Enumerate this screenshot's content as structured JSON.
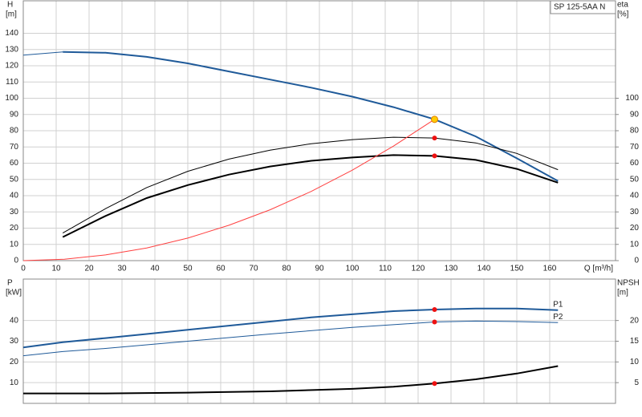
{
  "chart_data": [
    {
      "type": "line",
      "title": "SP 125-5AA N",
      "xlabel": "Q [m³/h]",
      "ylabel": "H",
      "yunit": "[m]",
      "y2label": "eta",
      "y2unit": "[%]",
      "xlim": [
        0,
        180
      ],
      "xticks": [
        0,
        10,
        20,
        30,
        40,
        50,
        60,
        70,
        80,
        90,
        100,
        110,
        120,
        130,
        140,
        150,
        160
      ],
      "ylim": [
        0,
        160
      ],
      "yticks": [
        0,
        10,
        20,
        30,
        40,
        50,
        60,
        70,
        80,
        90,
        100,
        110,
        120,
        130,
        140
      ],
      "y2lim": [
        0,
        160
      ],
      "y2ticks": [
        0,
        10,
        20,
        30,
        40,
        50,
        60,
        70,
        80,
        90,
        100
      ],
      "grid": true,
      "series": [
        {
          "color": "#1f5a99",
          "line_width": 1,
          "x": [
            0,
            12
          ],
          "values": [
            126.5,
            128.5
          ]
        },
        {
          "color": "#1f5a99",
          "line_width": 2,
          "x": [
            12,
            25,
            37.5,
            50,
            62.5,
            75,
            87.5,
            100,
            112.5,
            125,
            137.5,
            150,
            162.5
          ],
          "values": [
            128.5,
            128,
            125.5,
            121.5,
            116.5,
            111.5,
            106.5,
            101,
            94.5,
            87,
            76.5,
            63,
            49
          ]
        },
        {
          "color": "#000000",
          "line_width": 1,
          "axis": "y2",
          "x": [
            12,
            25,
            37.5,
            50,
            62.5,
            75,
            87.5,
            100,
            112.5,
            125,
            137.5,
            150,
            162.5
          ],
          "values": [
            17,
            32,
            45,
            55,
            62.5,
            68,
            72,
            74.5,
            76,
            75.5,
            72.5,
            66,
            56
          ]
        },
        {
          "color": "#000000",
          "line_width": 2,
          "axis": "y2",
          "x": [
            12,
            25,
            37.5,
            50,
            62.5,
            75,
            87.5,
            100,
            112.5,
            125,
            137.5,
            150,
            162.5
          ],
          "values": [
            14.5,
            27.5,
            38.5,
            46.5,
            53,
            58,
            61.5,
            63.5,
            65,
            64.5,
            62,
            56.5,
            48
          ]
        },
        {
          "color": "#ff4040",
          "line_width": 1,
          "x": [
            0,
            12.5,
            25,
            37.5,
            50,
            62.5,
            75,
            87.5,
            100,
            112.5,
            125
          ],
          "values": [
            0,
            0.9,
            3.5,
            7.8,
            13.9,
            21.8,
            31.3,
            42.6,
            55.7,
            70.5,
            87
          ]
        }
      ],
      "points": [
        {
          "color": "#ffcc00",
          "x": 125,
          "value": 87
        },
        {
          "color": "#ee1111",
          "axis": "y2",
          "x": 125,
          "value": 75.5
        },
        {
          "color": "#ee1111",
          "axis": "y2",
          "x": 125,
          "value": 64.5
        }
      ]
    },
    {
      "type": "line",
      "ylabel": "P",
      "yunit": "[kW]",
      "y2label": "NPSH",
      "y2unit": "[m]",
      "xlim": [
        0,
        180
      ],
      "ylim": [
        0,
        60
      ],
      "yticks": [
        10,
        20,
        30,
        40
      ],
      "y2lim": [
        0,
        30
      ],
      "y2ticks": [
        5,
        10,
        15,
        20
      ],
      "grid": true,
      "series": [
        {
          "name": "P1",
          "color": "#1f5a99",
          "line_width": 2,
          "x": [
            0,
            12,
            25,
            37.5,
            50,
            62.5,
            75,
            87.5,
            100,
            112.5,
            125,
            137.5,
            150,
            162.5
          ],
          "values": [
            27,
            29.5,
            31.5,
            33.5,
            35.5,
            37.5,
            39.5,
            41.5,
            43,
            44.5,
            45.3,
            45.8,
            45.8,
            45
          ]
        },
        {
          "name": "P2",
          "color": "#1f5a99",
          "line_width": 1,
          "x": [
            0,
            12,
            25,
            50,
            75,
            100,
            125,
            137.5,
            150,
            162.5
          ],
          "values": [
            23,
            25,
            26.5,
            30,
            33.5,
            36.7,
            39.3,
            39.7,
            39.5,
            39
          ]
        },
        {
          "color": "#000000",
          "line_width": 2,
          "axis": "y2",
          "x": [
            0,
            12,
            25,
            50,
            75,
            100,
            112.5,
            125,
            137.5,
            150,
            162.5
          ],
          "values": [
            2.4,
            2.4,
            2.4,
            2.6,
            2.9,
            3.5,
            4.0,
            4.8,
            5.8,
            7.2,
            9
          ]
        }
      ],
      "points": [
        {
          "color": "#ee1111",
          "x": 125,
          "value": 45.3
        },
        {
          "color": "#ee1111",
          "x": 125,
          "value": 39.3
        },
        {
          "color": "#ee1111",
          "axis": "y2",
          "x": 125,
          "value": 4.8
        }
      ]
    }
  ]
}
